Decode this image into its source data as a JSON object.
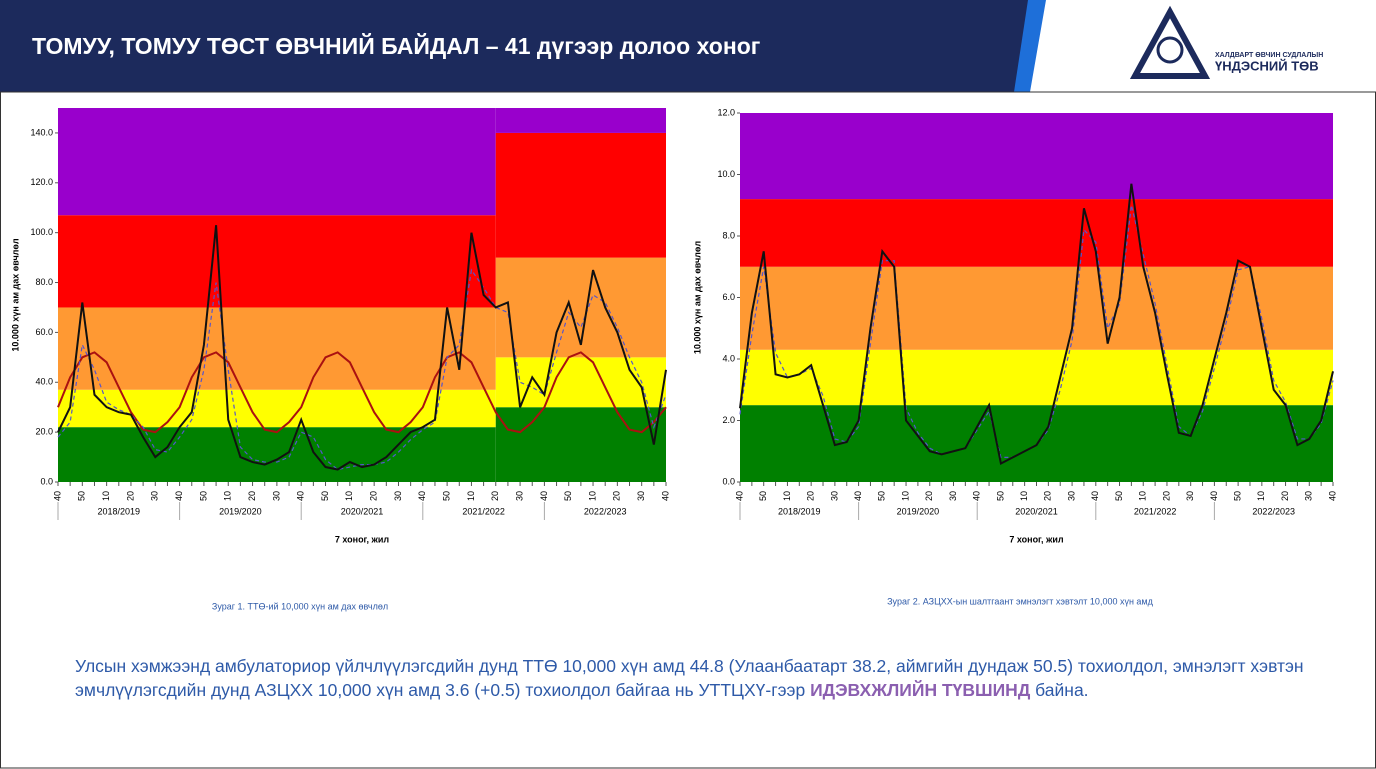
{
  "header": {
    "title": "ТОМУУ, ТОМУУ ТӨСТ ӨВЧНИЙ БАЙДАЛ – 41 дүгээр долоо хоног",
    "logo_top": "ХАЛДВАРТ ӨВЧИН СУДЛАЛЫН",
    "logo_bottom": "ҮНДЭСНИЙ ТӨВ"
  },
  "chart_data": [
    {
      "type": "line",
      "y_label": "10.000 хүн ам дах өвчлөл",
      "x_label": "7 хоног, жил",
      "caption": "Зураг 1. ТТӨ-ий 10,000 хүн ам дах өвчлөл",
      "groups": [
        "2018/2019",
        "2019/2020",
        "2020/2021",
        "2021/2022",
        "2022/2023"
      ],
      "categories": [
        "40",
        null,
        "50",
        null,
        "10",
        null,
        "20",
        null,
        "30",
        null,
        "40",
        null,
        "50",
        null,
        "10",
        null,
        "20",
        null,
        "30",
        null,
        "40",
        null,
        "50",
        null,
        "10",
        null,
        "20",
        null,
        "30",
        null,
        "40",
        null,
        "50",
        null,
        "10",
        null,
        "20",
        null,
        "30",
        null,
        "40",
        null,
        "50",
        null,
        "10",
        null,
        "20",
        null,
        "30",
        null,
        "40"
      ],
      "ylim": [
        0,
        150
      ],
      "yticks": [
        {
          "value": 0,
          "label": "0.0"
        },
        {
          "value": 20,
          "label": "20.0"
        },
        {
          "value": 40,
          "label": "40.0"
        },
        {
          "value": 60,
          "label": "60.0"
        },
        {
          "value": 80,
          "label": "80.0"
        },
        {
          "value": 100,
          "label": "100.0"
        },
        {
          "value": 120,
          "label": "120.0"
        },
        {
          "value": 140,
          "label": "140.0"
        }
      ],
      "zone_colors": [
        "#008000",
        "#ffff00",
        "#ff9933",
        "#ff0000",
        "#9900cc"
      ],
      "zone_periods": [
        {
          "start": 0,
          "thresholds": [
            22,
            37,
            70,
            107,
            150
          ]
        },
        {
          "start": 36,
          "thresholds": [
            30,
            50,
            90,
            140,
            150
          ]
        }
      ],
      "series": [
        {
          "color": "#aa1111",
          "width": 2,
          "values": [
            30,
            42,
            50,
            52,
            48,
            38,
            28,
            21,
            20,
            24,
            30,
            42,
            50,
            52,
            48,
            38,
            28,
            21,
            20,
            24,
            30,
            42,
            50,
            52,
            48,
            38,
            28,
            21,
            20,
            24,
            30,
            42,
            50,
            52,
            48,
            38,
            28,
            21,
            20,
            24,
            30,
            42,
            50,
            52,
            48,
            38,
            28,
            21,
            20,
            24,
            30
          ]
        },
        {
          "color": "#5555cc",
          "width": 1.2,
          "dash": true,
          "values": [
            18,
            24,
            55,
            45,
            32,
            29,
            27,
            22,
            13,
            12,
            18,
            25,
            45,
            80,
            45,
            14,
            9,
            8,
            8,
            10,
            20,
            18,
            9,
            5,
            6,
            7,
            7,
            8,
            12,
            17,
            21,
            24,
            50,
            55,
            85,
            78,
            70,
            68,
            40,
            38,
            35,
            52,
            68,
            62,
            75,
            72,
            62,
            50,
            40,
            22,
            35
          ]
        },
        {
          "color": "#111111",
          "width": 2,
          "values": [
            20,
            30,
            72,
            35,
            30,
            28,
            27,
            18,
            10,
            14,
            22,
            28,
            55,
            103,
            25,
            10,
            8,
            7,
            9,
            12,
            25,
            12,
            6,
            5,
            8,
            6,
            7,
            10,
            15,
            20,
            22,
            25,
            70,
            45,
            100,
            75,
            70,
            72,
            30,
            42,
            35,
            60,
            72,
            55,
            85,
            70,
            60,
            45,
            38,
            15,
            45
          ]
        }
      ]
    },
    {
      "type": "line",
      "y_label": "10.000 хүн ам дах өвчлөл",
      "x_label": "7 хоног, жил",
      "caption": "Зураг 2. АЗЦХХ-ын шалтгаант эмнэлэгт хэвтэлт 10,000 хүн амд",
      "groups": [
        "2018/2019",
        "2019/2020",
        "2020/2021",
        "2021/2022",
        "2022/2023"
      ],
      "categories": [
        "40",
        null,
        "50",
        null,
        "10",
        null,
        "20",
        null,
        "30",
        null,
        "40",
        null,
        "50",
        null,
        "10",
        null,
        "20",
        null,
        "30",
        null,
        "40",
        null,
        "50",
        null,
        "10",
        null,
        "20",
        null,
        "30",
        null,
        "40",
        null,
        "50",
        null,
        "10",
        null,
        "20",
        null,
        "30",
        null,
        "40",
        null,
        "50",
        null,
        "10",
        null,
        "20",
        null,
        "30",
        null,
        "40"
      ],
      "ylim": [
        0,
        12
      ],
      "yticks": [
        {
          "value": 0,
          "label": "0.0"
        },
        {
          "value": 2,
          "label": "2.0"
        },
        {
          "value": 4,
          "label": "4.0"
        },
        {
          "value": 6,
          "label": "6.0"
        },
        {
          "value": 8,
          "label": "8.0"
        },
        {
          "value": 10,
          "label": "10.0"
        },
        {
          "value": 12,
          "label": "12.0"
        }
      ],
      "zone_colors": [
        "#008000",
        "#ffff00",
        "#ff9933",
        "#ff0000",
        "#9900cc"
      ],
      "zone_periods": [
        {
          "start": 0,
          "thresholds": [
            2.5,
            4.3,
            7.0,
            9.2,
            12
          ]
        }
      ],
      "series": [
        {
          "color": "#5555cc",
          "width": 1.2,
          "dash": true,
          "values": [
            2.2,
            4.8,
            7.0,
            4.2,
            3.4,
            3.5,
            3.7,
            2.8,
            1.4,
            1.3,
            1.8,
            4.5,
            7.2,
            7.2,
            2.4,
            1.6,
            1.1,
            0.9,
            1.0,
            1.1,
            1.7,
            2.3,
            0.8,
            0.8,
            1.0,
            1.2,
            1.7,
            3.0,
            4.6,
            8.2,
            7.8,
            5.0,
            5.8,
            9.0,
            7.4,
            5.8,
            3.8,
            1.8,
            1.5,
            2.3,
            3.7,
            5.2,
            6.9,
            7.0,
            5.3,
            3.3,
            2.6,
            1.4,
            1.4,
            1.9,
            3.3
          ]
        },
        {
          "color": "#111111",
          "width": 2,
          "values": [
            2.4,
            5.5,
            7.5,
            3.5,
            3.4,
            3.5,
            3.8,
            2.5,
            1.2,
            1.3,
            2.0,
            5.0,
            7.5,
            7.0,
            2.0,
            1.5,
            1.0,
            0.9,
            1.0,
            1.1,
            1.8,
            2.5,
            0.6,
            0.8,
            1.0,
            1.2,
            1.8,
            3.4,
            5.0,
            8.9,
            7.5,
            4.5,
            6.0,
            9.7,
            7.0,
            5.5,
            3.5,
            1.6,
            1.5,
            2.5,
            4.0,
            5.5,
            7.2,
            7.0,
            5.0,
            3.0,
            2.5,
            1.2,
            1.4,
            2.0,
            3.6
          ]
        }
      ]
    }
  ],
  "text": {
    "before": "Улсын хэмжээнд амбулаториор үйлчлүүлэгсдийн дунд ТТӨ 10,000 хүн амд 44.8 (Улаанбаатарт 38.2, аймгийн дундаж 50.5) тохиолдол, эмнэлэгт хэвтэн эмчлүүлэгсдийн дунд АЗЦХХ 10,000 хүн амд 3.6 (+0.5) тохиолдол байгаа нь УТТЦХҮ-гээр ",
    "highlight": "ИДЭВХЖЛИЙН ТҮВШИНД",
    "after": " байна."
  }
}
